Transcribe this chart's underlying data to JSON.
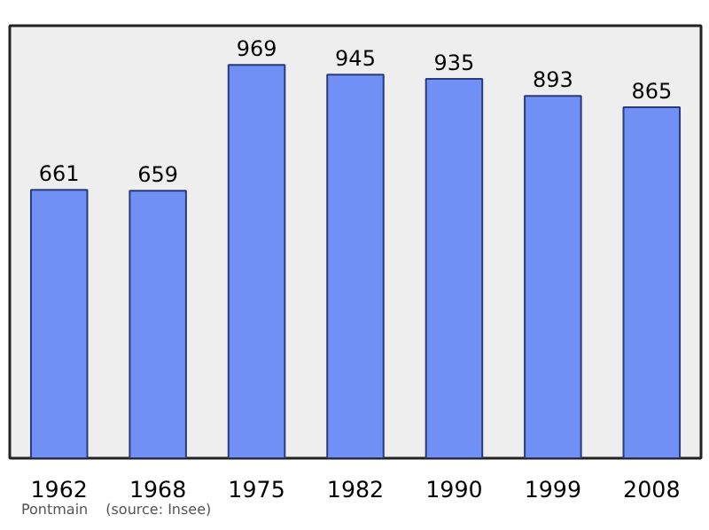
{
  "chart_data": {
    "type": "bar",
    "categories": [
      "1962",
      "1968",
      "1975",
      "1982",
      "1990",
      "1999",
      "2008"
    ],
    "values": [
      661,
      659,
      969,
      945,
      935,
      893,
      865
    ],
    "color": "#7090f5",
    "data_labels": true,
    "grid": false,
    "annotations": [
      "Pontmain",
      "(source: Insee)"
    ]
  }
}
